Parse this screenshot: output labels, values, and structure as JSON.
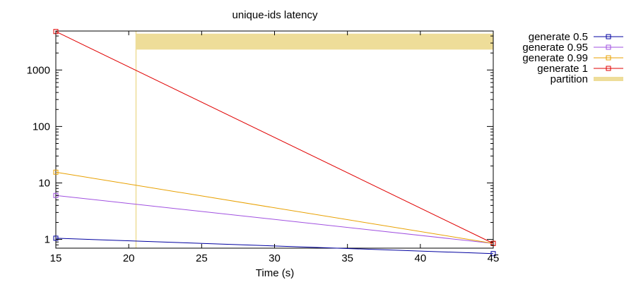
{
  "chart_data": {
    "type": "line",
    "title": "unique-ids latency",
    "xlabel": "Time (s)",
    "ylabel": "",
    "xlim": [
      15,
      45
    ],
    "ylim": [
      0.7,
      4900
    ],
    "yscale": "log",
    "grid": false,
    "legend_position": "right",
    "xticks": [
      15,
      20,
      25,
      30,
      35,
      40,
      45
    ],
    "yticks": [
      {
        "value": 1,
        "label": "1"
      },
      {
        "value": 10,
        "label": "10"
      },
      {
        "value": 100,
        "label": "100"
      },
      {
        "value": 1000,
        "label": "1000"
      }
    ],
    "series": [
      {
        "name": "generate 0.5",
        "color": "#0000a0",
        "points": [
          [
            15,
            1.05
          ],
          [
            45,
            0.56
          ]
        ]
      },
      {
        "name": "generate 0.95",
        "color": "#a050e0",
        "points": [
          [
            15,
            6.0
          ],
          [
            45,
            0.85
          ]
        ]
      },
      {
        "name": "generate 0.99",
        "color": "#e8a000",
        "points": [
          [
            15,
            15.5
          ],
          [
            45,
            0.85
          ]
        ]
      },
      {
        "name": "generate 1",
        "color": "#e00000",
        "points": [
          [
            15,
            4800
          ],
          [
            45,
            0.85
          ]
        ]
      }
    ],
    "partition": {
      "name": "partition",
      "color": "#eedd99",
      "x_start": 20.5,
      "x_end": 45,
      "y_low": 2300,
      "y_high": 4400
    }
  }
}
